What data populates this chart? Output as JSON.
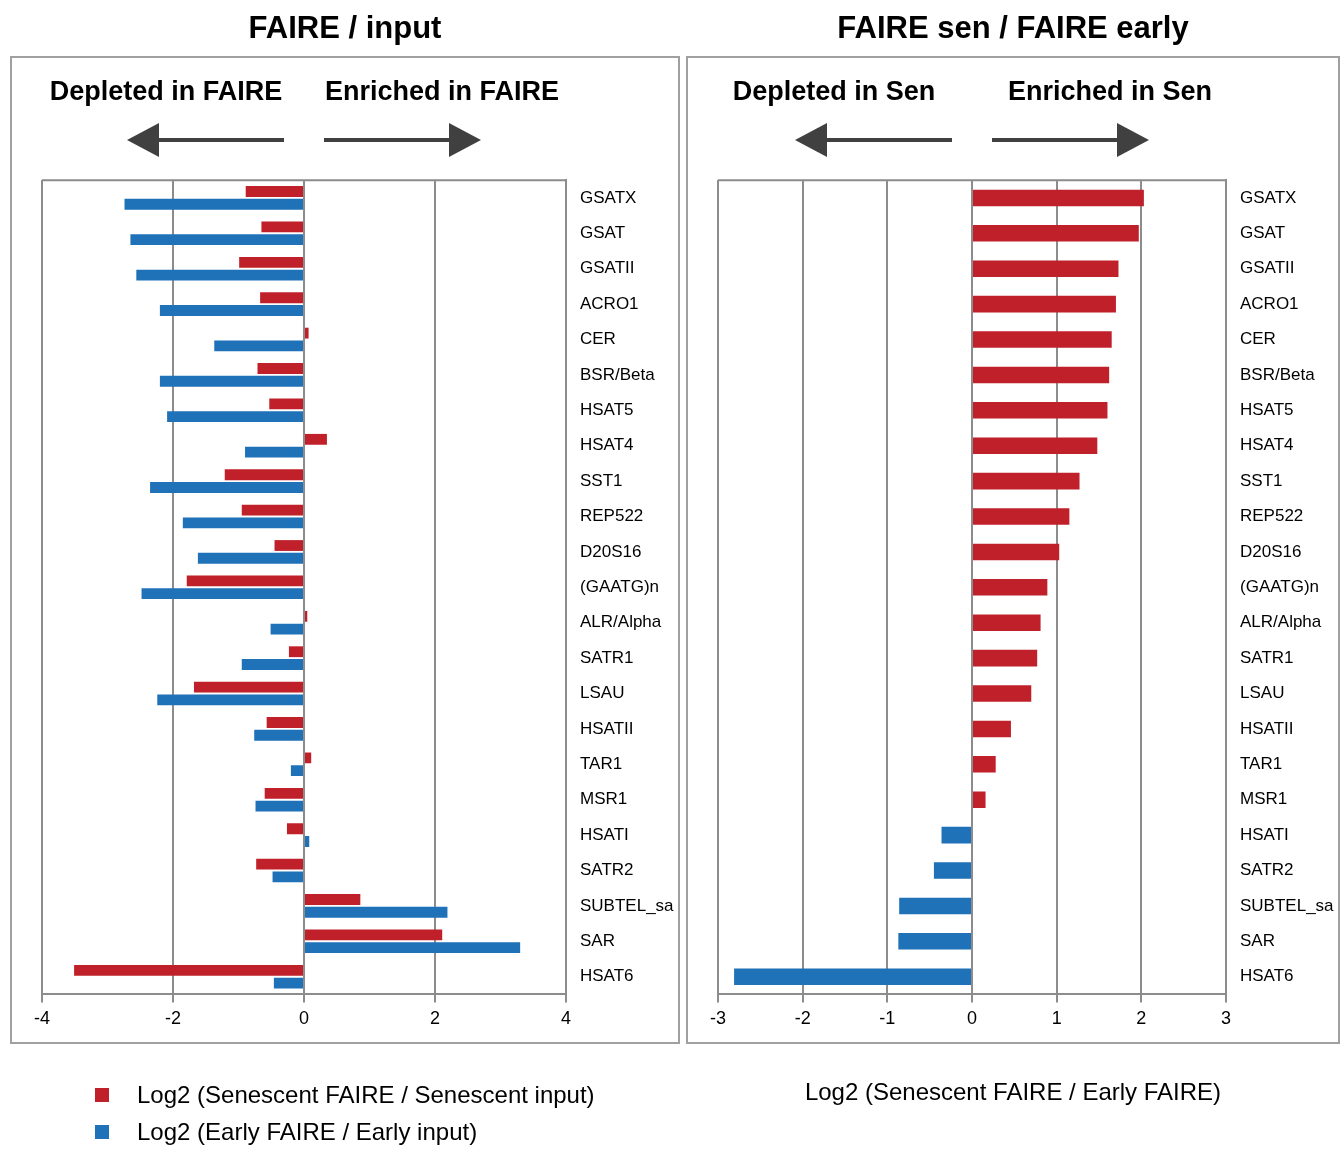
{
  "chart_data": [
    {
      "type": "bar",
      "orientation": "horizontal",
      "title": "FAIRE / input",
      "annotations": [
        "Depleted in FAIRE",
        "Enriched in FAIRE"
      ],
      "categories": [
        "GSATX",
        "GSAT",
        "GSATII",
        "ACRO1",
        "CER",
        "BSR/Beta",
        "HSAT5",
        "HSAT4",
        "SST1",
        "REP522",
        "D20S16",
        "(GAATG)n",
        "ALR/Alpha",
        "SATR1",
        "LSAU",
        "HSATII",
        "TAR1",
        "MSR1",
        "HSATI",
        "SATR2",
        "SUBTEL_sa",
        "SAR",
        "HSAT6"
      ],
      "series": [
        {
          "name": "Log2 (Senescent FAIRE / Senescent input)",
          "color": "#c0202a",
          "values": [
            -0.89,
            -0.65,
            -0.99,
            -0.67,
            0.07,
            -0.71,
            -0.53,
            0.35,
            -1.21,
            -0.95,
            -0.45,
            -1.79,
            0.05,
            -0.23,
            -1.68,
            -0.57,
            0.11,
            -0.6,
            -0.26,
            -0.73,
            0.86,
            2.11,
            -3.51
          ]
        },
        {
          "name": "Log2 (Early FAIRE / Early input)",
          "color": "#1f71b8",
          "values": [
            -2.74,
            -2.65,
            -2.56,
            -2.2,
            -1.37,
            -2.2,
            -2.09,
            -0.9,
            -2.35,
            -1.85,
            -1.62,
            -2.48,
            -0.51,
            -0.95,
            -2.24,
            -0.76,
            -0.2,
            -0.74,
            0.08,
            -0.48,
            2.19,
            3.3,
            -0.46
          ]
        }
      ],
      "xlim": [
        -4,
        4
      ],
      "xticks": [
        -4,
        -2,
        0,
        2,
        4
      ],
      "grid": "x",
      "legend": "bottom"
    },
    {
      "type": "bar",
      "orientation": "horizontal",
      "title": "FAIRE sen / FAIRE early",
      "xlabel": "Log2 (Senescent FAIRE / Early FAIRE)",
      "annotations": [
        "Depleted in Sen",
        "Enriched in Sen"
      ],
      "categories": [
        "GSATX",
        "GSAT",
        "GSATII",
        "ACRO1",
        "CER",
        "BSR/Beta",
        "HSAT5",
        "HSAT4",
        "SST1",
        "REP522",
        "D20S16",
        "(GAATG)n",
        "ALR/Alpha",
        "SATR1",
        "LSAU",
        "HSATII",
        "TAR1",
        "MSR1",
        "HSATI",
        "SATR2",
        "SUBTEL_sa",
        "SAR",
        "HSAT6"
      ],
      "values": [
        2.03,
        1.97,
        1.73,
        1.7,
        1.65,
        1.62,
        1.6,
        1.48,
        1.27,
        1.15,
        1.03,
        0.89,
        0.81,
        0.77,
        0.7,
        0.46,
        0.28,
        0.16,
        -0.36,
        -0.45,
        -0.86,
        -0.87,
        -2.81
      ],
      "colors": [
        "#c0202a",
        "#c0202a",
        "#c0202a",
        "#c0202a",
        "#c0202a",
        "#c0202a",
        "#c0202a",
        "#c0202a",
        "#c0202a",
        "#c0202a",
        "#c0202a",
        "#c0202a",
        "#c0202a",
        "#c0202a",
        "#c0202a",
        "#c0202a",
        "#c0202a",
        "#c0202a",
        "#1f71b8",
        "#1f71b8",
        "#1f71b8",
        "#1f71b8",
        "#1f71b8"
      ],
      "xlim": [
        -3,
        3
      ],
      "xticks": [
        -3,
        -2,
        -1,
        0,
        1,
        2,
        3
      ],
      "grid": "x"
    }
  ]
}
